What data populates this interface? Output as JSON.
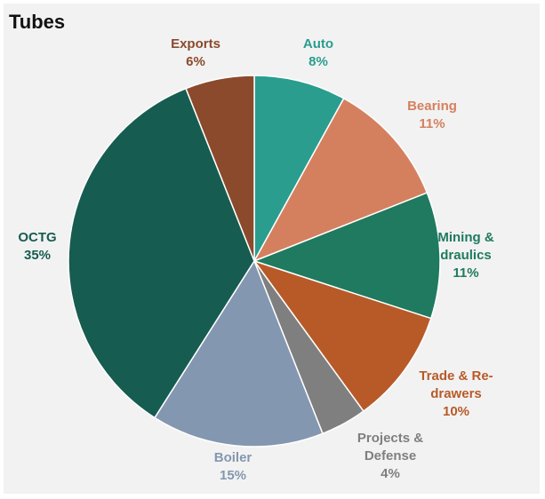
{
  "chart_data": {
    "type": "pie",
    "title": "Tubes",
    "slices": [
      {
        "label": "Auto",
        "value": 8,
        "value_label": "8%",
        "color": "#2a9d8f"
      },
      {
        "label": "Bearing",
        "value": 11,
        "value_label": "11%",
        "color": "#d4805f"
      },
      {
        "label": "Mining & Hydraulics",
        "label_lines": [
          "Mining &",
          "draulics"
        ],
        "value": 11,
        "value_label": "11%",
        "color": "#1f7a5f"
      },
      {
        "label": "Trade & Re-drawers",
        "label_lines": [
          "Trade & Re-",
          "drawers"
        ],
        "value": 10,
        "value_label": "10%",
        "color": "#b85a28"
      },
      {
        "label": "Projects & Defense",
        "label_lines": [
          "Projects &",
          "Defense"
        ],
        "value": 4,
        "value_label": "4%",
        "color": "#7f7f7f"
      },
      {
        "label": "Boiler",
        "value": 15,
        "value_label": "15%",
        "color": "#8497b0"
      },
      {
        "label": "OCTG",
        "value": 35,
        "value_label": "35%",
        "color": "#175c50"
      },
      {
        "label": "Exports",
        "value": 6,
        "value_label": "6%",
        "color": "#8b4a2c"
      }
    ],
    "start_angle_deg": 0,
    "direction": "clockwise",
    "legend": "none"
  }
}
